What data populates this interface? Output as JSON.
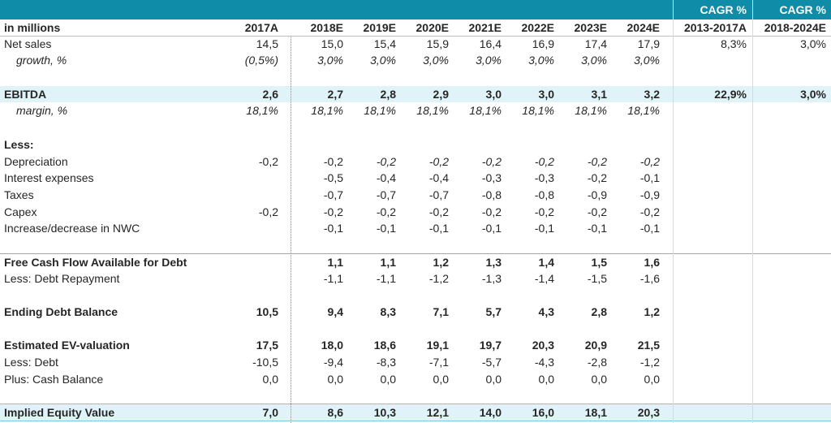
{
  "header": {
    "unit_label": "in millions",
    "years": [
      "2017A",
      "2018E",
      "2019E",
      "2020E",
      "2021E",
      "2022E",
      "2023E",
      "2024E"
    ],
    "cagr_title_1": "CAGR %",
    "cagr_title_2": "CAGR %",
    "cagr_period_1": "2013-2017A",
    "cagr_period_2": "2018-2024E"
  },
  "rows": [
    {
      "label": "Net sales",
      "values": [
        "14,5",
        "15,0",
        "15,4",
        "15,9",
        "16,4",
        "16,9",
        "17,4",
        "17,9"
      ],
      "cagr1": "8,3%",
      "cagr2": "3,0%"
    },
    {
      "label": "growth, %",
      "values": [
        "(0,5%)",
        "3,0%",
        "3,0%",
        "3,0%",
        "3,0%",
        "3,0%",
        "3,0%",
        "3,0%"
      ],
      "cagr1": "",
      "cagr2": ""
    },
    {
      "label": "EBITDA",
      "values": [
        "2,6",
        "2,7",
        "2,8",
        "2,9",
        "3,0",
        "3,0",
        "3,1",
        "3,2"
      ],
      "cagr1": "22,9%",
      "cagr2": "3,0%"
    },
    {
      "label": "margin, %",
      "values": [
        "18,1%",
        "18,1%",
        "18,1%",
        "18,1%",
        "18,1%",
        "18,1%",
        "18,1%",
        "18,1%"
      ],
      "cagr1": "",
      "cagr2": ""
    },
    {
      "label": "Less:",
      "values": [
        "",
        "",
        "",
        "",
        "",
        "",
        "",
        ""
      ],
      "cagr1": "",
      "cagr2": ""
    },
    {
      "label": "Depreciation",
      "values": [
        "-0,2",
        "-0,2",
        "-0,2",
        "-0,2",
        "-0,2",
        "-0,2",
        "-0,2",
        "-0,2"
      ],
      "cagr1": "",
      "cagr2": ""
    },
    {
      "label": "Interest expenses",
      "values": [
        "",
        "-0,5",
        "-0,4",
        "-0,4",
        "-0,3",
        "-0,3",
        "-0,2",
        "-0,1"
      ],
      "cagr1": "",
      "cagr2": ""
    },
    {
      "label": "Taxes",
      "values": [
        "",
        "-0,7",
        "-0,7",
        "-0,7",
        "-0,8",
        "-0,8",
        "-0,9",
        "-0,9"
      ],
      "cagr1": "",
      "cagr2": ""
    },
    {
      "label": "Capex",
      "values": [
        "-0,2",
        "-0,2",
        "-0,2",
        "-0,2",
        "-0,2",
        "-0,2",
        "-0,2",
        "-0,2"
      ],
      "cagr1": "",
      "cagr2": ""
    },
    {
      "label": "Increase/decrease in NWC",
      "values": [
        "",
        "-0,1",
        "-0,1",
        "-0,1",
        "-0,1",
        "-0,1",
        "-0,1",
        "-0,1"
      ],
      "cagr1": "",
      "cagr2": ""
    },
    {
      "label": "Free Cash Flow Available for Debt",
      "values": [
        "",
        "1,1",
        "1,1",
        "1,2",
        "1,3",
        "1,4",
        "1,5",
        "1,6"
      ],
      "cagr1": "",
      "cagr2": ""
    },
    {
      "label": "Less:  Debt Repayment",
      "values": [
        "",
        "-1,1",
        "-1,1",
        "-1,2",
        "-1,3",
        "-1,4",
        "-1,5",
        "-1,6"
      ],
      "cagr1": "",
      "cagr2": ""
    },
    {
      "label": "Ending Debt Balance",
      "values": [
        "10,5",
        "9,4",
        "8,3",
        "7,1",
        "5,7",
        "4,3",
        "2,8",
        "1,2"
      ],
      "cagr1": "",
      "cagr2": ""
    },
    {
      "label": "Estimated EV-valuation",
      "values": [
        "17,5",
        "18,0",
        "18,6",
        "19,1",
        "19,7",
        "20,3",
        "20,9",
        "21,5"
      ],
      "cagr1": "",
      "cagr2": ""
    },
    {
      "label": "Less: Debt",
      "values": [
        "-10,5",
        "-9,4",
        "-8,3",
        "-7,1",
        "-5,7",
        "-4,3",
        "-2,8",
        "-1,2"
      ],
      "cagr1": "",
      "cagr2": ""
    },
    {
      "label": "Plus: Cash Balance",
      "values": [
        "0,0",
        "0,0",
        "0,0",
        "0,0",
        "0,0",
        "0,0",
        "0,0",
        "0,0"
      ],
      "cagr1": "",
      "cagr2": ""
    },
    {
      "label": "Implied Equity Value",
      "values": [
        "7,0",
        "8,6",
        "10,3",
        "12,1",
        "14,0",
        "16,0",
        "18,1",
        "20,3"
      ],
      "cagr1": "",
      "cagr2": ""
    }
  ]
}
